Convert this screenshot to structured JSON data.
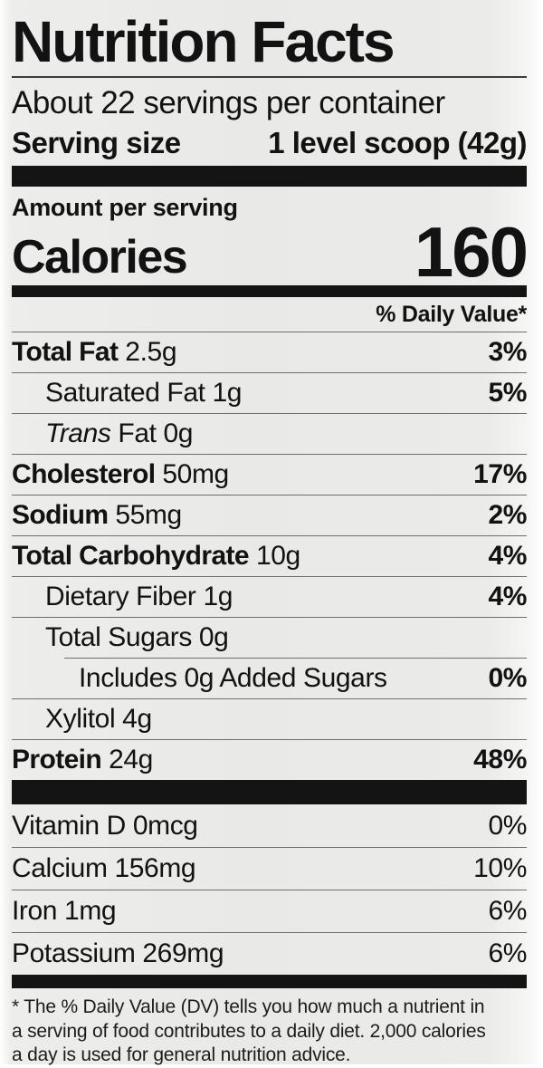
{
  "label": {
    "title": "Nutrition Facts",
    "servings_per_container": "About 22 servings per container",
    "serving_size_label": "Serving size",
    "serving_size_value": "1 level scoop (42g)",
    "amount_per_serving": "Amount per serving",
    "calories_label": "Calories",
    "calories_value": "160",
    "daily_value_header": "% Daily Value*",
    "nutrients": [
      {
        "parts": [
          {
            "t": "Total Fat",
            "b": true
          },
          {
            "t": " 2.5g"
          }
        ],
        "dv": "3%",
        "dv_bold": true,
        "indent": 0
      },
      {
        "parts": [
          {
            "t": "Saturated Fat 1g"
          }
        ],
        "dv": "5%",
        "dv_bold": true,
        "indent": 1
      },
      {
        "parts": [
          {
            "t": "Trans",
            "i": true
          },
          {
            "t": " Fat 0g"
          }
        ],
        "dv": "",
        "indent": 1
      },
      {
        "parts": [
          {
            "t": "Cholesterol",
            "b": true
          },
          {
            "t": " 50mg"
          }
        ],
        "dv": "17%",
        "dv_bold": true,
        "indent": 0
      },
      {
        "parts": [
          {
            "t": "Sodium",
            "b": true
          },
          {
            "t": " 55mg"
          }
        ],
        "dv": "2%",
        "dv_bold": true,
        "indent": 0
      },
      {
        "parts": [
          {
            "t": "Total Carbohydrate",
            "b": true
          },
          {
            "t": " 10g"
          }
        ],
        "dv": "4%",
        "dv_bold": true,
        "indent": 0
      },
      {
        "parts": [
          {
            "t": "Dietary Fiber 1g"
          }
        ],
        "dv": "4%",
        "dv_bold": true,
        "indent": 1
      },
      {
        "parts": [
          {
            "t": "Total Sugars 0g"
          }
        ],
        "dv": "",
        "indent": 1
      },
      {
        "parts": [
          {
            "t": "Includes 0g Added Sugars"
          }
        ],
        "dv": "0%",
        "dv_bold": true,
        "indent": 2,
        "rule_indent": true
      },
      {
        "parts": [
          {
            "t": "Xylitol 4g"
          }
        ],
        "dv": "",
        "indent": 1
      },
      {
        "parts": [
          {
            "t": "Protein",
            "b": true
          },
          {
            "t": " 24g"
          }
        ],
        "dv": "48%",
        "dv_bold": true,
        "indent": 0
      }
    ],
    "vitamins": [
      {
        "parts": [
          {
            "t": "Vitamin D 0mcg"
          }
        ],
        "dv": "0%",
        "no_rule": true
      },
      {
        "parts": [
          {
            "t": "Calcium 156mg"
          }
        ],
        "dv": "10%"
      },
      {
        "parts": [
          {
            "t": "Iron 1mg"
          }
        ],
        "dv": "6%"
      },
      {
        "parts": [
          {
            "t": "Potassium 269mg"
          }
        ],
        "dv": "6%"
      }
    ],
    "footnote_lines": [
      "* The % Daily Value (DV) tells you how much a nutrient in",
      "a serving of food contributes to a daily diet. 2,000 calories",
      "a day is used for general nutrition advice."
    ]
  }
}
